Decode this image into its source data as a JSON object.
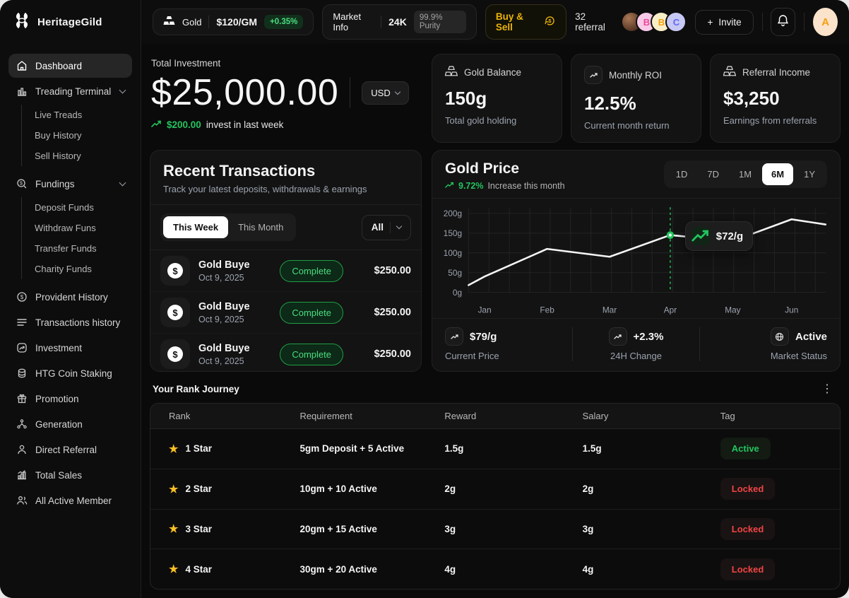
{
  "icons": {
    "star": "★",
    "dots": "⋮",
    "dollar": "$",
    "plus": "+"
  },
  "colors": {
    "accent_green": "#22c55e",
    "gold": "#eab308",
    "danger": "#ef4444",
    "card_bg": "#131313"
  },
  "header": {
    "brand": "HeritageGild",
    "gold_ticker": {
      "label": "Gold",
      "price": "$120/GM",
      "change": "+0.35%"
    },
    "market_info": {
      "label": "Market Info",
      "karat": "24K",
      "purity": "99.9% Purity"
    },
    "buy_sell_label": "Buy & Sell",
    "referral_count": "32 referral",
    "avatars": [
      {
        "type": "photo"
      },
      {
        "initial": "B",
        "bg": "#f9c9e8",
        "color": "#ec4899"
      },
      {
        "initial": "B",
        "bg": "#f9efc7",
        "color": "#f59e0b"
      },
      {
        "initial": "C",
        "bg": "#c7c9f5",
        "color": "#6366f1"
      }
    ],
    "invite_label": "Invite",
    "user_initial": "A"
  },
  "sidebar": {
    "items": [
      {
        "label": "Dashboard",
        "icon": "home",
        "active": true
      },
      {
        "label": "Treading Terminal",
        "icon": "chart-bars",
        "children": [
          "Live Treads",
          "Buy History",
          "Sell History"
        ]
      },
      {
        "label": "Fundings",
        "icon": "coin",
        "children": [
          "Deposit Funds",
          "Withdraw Funs",
          "Transfer Funds",
          "Charity Funds"
        ]
      },
      {
        "label": "Provident History",
        "icon": "dollar-circle"
      },
      {
        "label": "Transactions history",
        "icon": "list"
      },
      {
        "label": "Investment",
        "icon": "trend-square"
      },
      {
        "label": "HTG Coin Staking",
        "icon": "coins-stack"
      },
      {
        "label": "Promotion",
        "icon": "gift"
      },
      {
        "label": "Generation",
        "icon": "network"
      },
      {
        "label": "Direct Referral",
        "icon": "person"
      },
      {
        "label": "Total Sales",
        "icon": "sales-chart"
      },
      {
        "label": "All Active Member",
        "icon": "people"
      }
    ]
  },
  "overview": {
    "label": "Total Investment",
    "amount": "$25,000.00",
    "currency": "USD",
    "change_amount": "$200.00",
    "change_text": "invest in last week"
  },
  "stats": [
    {
      "icon": "gold-bars",
      "title": "Gold Balance",
      "value": "150g",
      "subtitle": "Total gold holding"
    },
    {
      "icon": "trend",
      "title": "Monthly ROI",
      "value": "12.5%",
      "subtitle": "Current month return"
    },
    {
      "icon": "gold-bars",
      "title": "Referral Income",
      "value": "$3,250",
      "subtitle": "Earnings from referrals"
    }
  ],
  "transactions": {
    "title": "Recent Transactions",
    "subtitle": "Track your latest deposits, withdrawals & earnings",
    "tabs": [
      "This Week",
      "This Month"
    ],
    "active_tab": "This Week",
    "filter": "All",
    "rows": [
      {
        "name": "Gold Buye",
        "date": "Oct 9, 2025",
        "status": "Complete",
        "amount": "$250.00"
      },
      {
        "name": "Gold Buye",
        "date": "Oct 9, 2025",
        "status": "Complete",
        "amount": "$250.00"
      },
      {
        "name": "Gold Buye",
        "date": "Oct 9, 2025",
        "status": "Complete",
        "amount": "$250.00"
      }
    ]
  },
  "gold_price": {
    "title": "Gold Price",
    "change_pct": "9.72%",
    "change_text": "Increase this month",
    "ranges": [
      "1D",
      "7D",
      "1M",
      "6M",
      "1Y"
    ],
    "active_range": "6M",
    "tooltip": "$72/g",
    "footer": [
      {
        "icon": "trend",
        "value": "$79/g",
        "label": "Current Price"
      },
      {
        "icon": "trend",
        "value": "+2.3%",
        "label": "24H Change"
      },
      {
        "icon": "globe",
        "value": "Active",
        "label": "Market Status"
      }
    ],
    "chart_data": {
      "type": "line",
      "x": [
        "Jan",
        "Feb",
        "Mar",
        "Apr",
        "May",
        "Jun"
      ],
      "values": [
        40,
        110,
        90,
        145,
        130,
        185
      ],
      "start_value": 18,
      "end_value": 172,
      "ylabels": [
        "200g",
        "150g",
        "100g",
        "50g",
        "0g"
      ],
      "ylim": [
        0,
        200
      ],
      "grid": true,
      "highlight": {
        "x": "Apr",
        "value": 145,
        "label": "$72/g"
      }
    }
  },
  "rank_journey": {
    "title": "Your Rank Journey",
    "columns": [
      "Rank",
      "Requirement",
      "Reward",
      "Salary",
      "Tag"
    ],
    "rows": [
      {
        "rank": "1 Star",
        "requirement": "5gm Deposit + 5 Active",
        "reward": "1.5g",
        "salary": "1.5g",
        "tag": "Active",
        "tag_type": "active"
      },
      {
        "rank": "2 Star",
        "requirement": "10gm + 10 Active",
        "reward": "2g",
        "salary": "2g",
        "tag": "Locked",
        "tag_type": "locked"
      },
      {
        "rank": "3 Star",
        "requirement": "20gm + 15 Active",
        "reward": "3g",
        "salary": "3g",
        "tag": "Locked",
        "tag_type": "locked"
      },
      {
        "rank": "4 Star",
        "requirement": "30gm + 20 Active",
        "reward": "4g",
        "salary": "4g",
        "tag": "Locked",
        "tag_type": "locked"
      }
    ]
  }
}
